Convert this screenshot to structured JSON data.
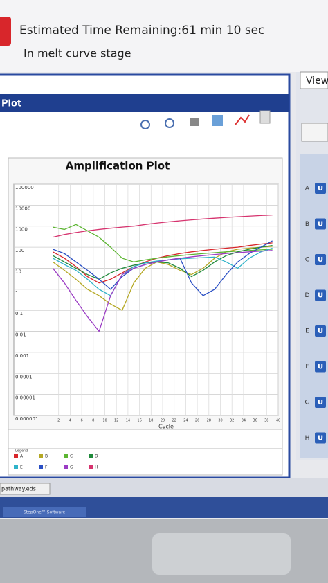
{
  "header": {
    "time_remaining": "Estimated Time Remaining:61 min 10 sec",
    "stage": "In melt curve stage"
  },
  "panel": {
    "title": "Plot"
  },
  "chart_data": {
    "type": "line",
    "title": "Amplification Plot",
    "x_label": "Cycle",
    "legend_title": "Legend",
    "log_scale": true,
    "grid": true,
    "x": [
      1,
      3,
      5,
      7,
      9,
      11,
      13,
      15,
      17,
      19,
      21,
      23,
      25,
      27,
      29,
      31,
      33,
      35,
      37,
      39
    ],
    "xlim": [
      0,
      40
    ],
    "xticks": [
      2,
      4,
      6,
      8,
      10,
      12,
      14,
      16,
      18,
      20,
      22,
      24,
      26,
      28,
      30,
      32,
      34,
      36,
      38,
      40
    ],
    "ylim": [
      1e-06,
      100000
    ],
    "yticks": [
      1e-06,
      1e-05,
      0.0001,
      0.001,
      0.01,
      0.1,
      1,
      10,
      100,
      1000,
      10000,
      100000
    ],
    "series": [
      {
        "name": "A",
        "color": "#d8262b",
        "values": [
          60,
          30,
          12,
          4,
          2,
          3,
          6,
          12,
          20,
          30,
          40,
          50,
          60,
          70,
          80,
          90,
          100,
          120,
          140,
          160
        ]
      },
      {
        "name": "B",
        "color": "#b5a824",
        "values": [
          20,
          8,
          3,
          1,
          0.5,
          0.2,
          0.1,
          2,
          10,
          20,
          15,
          8,
          5,
          10,
          30,
          60,
          80,
          90,
          100,
          110
        ]
      },
      {
        "name": "C",
        "color": "#5cb531",
        "values": [
          900,
          700,
          1200,
          600,
          300,
          100,
          30,
          20,
          25,
          30,
          35,
          40,
          45,
          50,
          55,
          60,
          65,
          70,
          75,
          80
        ]
      },
      {
        "name": "D",
        "color": "#1f8a3a",
        "values": [
          40,
          20,
          10,
          5,
          3,
          6,
          10,
          14,
          18,
          20,
          18,
          10,
          4,
          8,
          20,
          40,
          60,
          80,
          100,
          120
        ]
      },
      {
        "name": "E",
        "color": "#2fb3c9",
        "values": [
          30,
          15,
          8,
          3,
          1,
          0.5,
          5,
          12,
          18,
          22,
          25,
          28,
          30,
          32,
          34,
          20,
          10,
          30,
          60,
          90
        ]
      },
      {
        "name": "F",
        "color": "#2a4fc4",
        "values": [
          80,
          50,
          20,
          8,
          3,
          1,
          4,
          10,
          15,
          20,
          25,
          30,
          2,
          0.5,
          1,
          5,
          20,
          50,
          100,
          200
        ]
      },
      {
        "name": "G",
        "color": "#9b3cc4",
        "values": [
          10,
          2,
          0.3,
          0.05,
          0.01,
          0.5,
          5,
          10,
          15,
          20,
          25,
          30,
          35,
          40,
          45,
          50,
          55,
          60,
          65,
          70
        ]
      },
      {
        "name": "H",
        "color": "#d6336e",
        "values": [
          300,
          400,
          500,
          600,
          700,
          800,
          900,
          1000,
          1200,
          1400,
          1600,
          1800,
          2000,
          2200,
          2400,
          2600,
          2800,
          3000,
          3200,
          3400
        ]
      }
    ]
  },
  "right_panel": {
    "tab": "View",
    "rows": [
      {
        "letter": "A",
        "button": "U"
      },
      {
        "letter": "B",
        "button": "U"
      },
      {
        "letter": "C",
        "button": "U"
      },
      {
        "letter": "D",
        "button": "U"
      },
      {
        "letter": "E",
        "button": "U"
      },
      {
        "letter": "F",
        "button": "U"
      },
      {
        "letter": "G",
        "button": "U"
      },
      {
        "letter": "H",
        "button": "U"
      }
    ]
  },
  "file_tab": "pathway.eds",
  "taskbar": {
    "app": "StepOne™ Software"
  }
}
